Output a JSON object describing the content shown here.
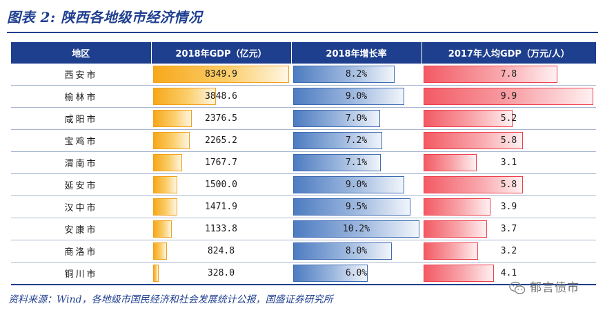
{
  "figure_title": "图表 2:  陕西各地级市经济情况",
  "columns": [
    "地区",
    "2018年GDP（亿元）",
    "2018年增长率",
    "2017年人均GDP（万元/人）"
  ],
  "rows": [
    {
      "region": "西安市",
      "gdp": "8349.9",
      "growth": "8.2%",
      "per_capita": "7.8"
    },
    {
      "region": "榆林市",
      "gdp": "3848.6",
      "growth": "9.0%",
      "per_capita": "9.9"
    },
    {
      "region": "咸阳市",
      "gdp": "2376.5",
      "growth": "7.0%",
      "per_capita": "5.2"
    },
    {
      "region": "宝鸡市",
      "gdp": "2265.2",
      "growth": "7.2%",
      "per_capita": "5.8"
    },
    {
      "region": "渭南市",
      "gdp": "1767.7",
      "growth": "7.1%",
      "per_capita": "3.1"
    },
    {
      "region": "延安市",
      "gdp": "1500.0",
      "growth": "9.0%",
      "per_capita": "5.8"
    },
    {
      "region": "汉中市",
      "gdp": "1471.9",
      "growth": "9.5%",
      "per_capita": "3.9"
    },
    {
      "region": "安康市",
      "gdp": "1133.8",
      "growth": "10.2%",
      "per_capita": "3.7"
    },
    {
      "region": "商洛市",
      "gdp": "824.8",
      "growth": "8.0%",
      "per_capita": "3.2"
    },
    {
      "region": "铜川市",
      "gdp": "328.0",
      "growth": "6.0%",
      "per_capita": "4.1"
    }
  ],
  "bar_fractions": {
    "gdp": [
      1.0,
      0.461,
      0.285,
      0.271,
      0.212,
      0.18,
      0.176,
      0.136,
      0.099,
      0.039
    ],
    "growth": [
      0.804,
      0.882,
      0.686,
      0.706,
      0.696,
      0.882,
      0.931,
      1.0,
      0.784,
      0.588
    ],
    "per_capita": [
      0.788,
      1.0,
      0.525,
      0.586,
      0.313,
      0.586,
      0.394,
      0.374,
      0.323,
      0.414
    ]
  },
  "source_note": "资料来源：Wind，各地级市国民经济和社会发展统计公报，国盛证券研究所",
  "watermark": "郁言债市"
}
